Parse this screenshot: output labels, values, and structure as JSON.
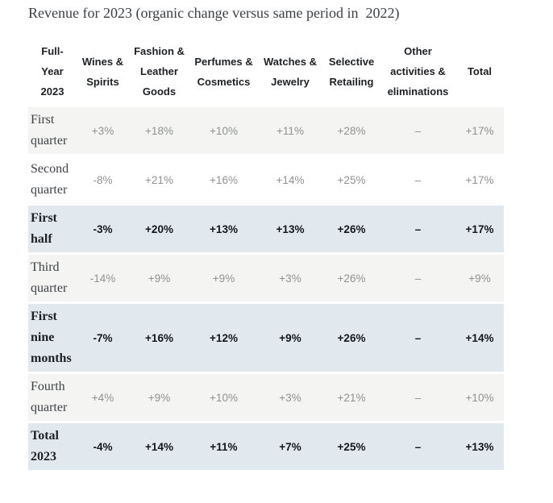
{
  "title": "Revenue for 2023 (organic change versus same period in  2022)",
  "colors": {
    "row_gray_bg": "#f4f4f2",
    "row_white_bg": "#ffffff",
    "row_highlight_blue_bg": "#e1e9ef",
    "muted_value_text": "#8f9193",
    "strong_value_text": "#141619",
    "header_text": "#1e2124",
    "title_text": "#3c4147"
  },
  "table": {
    "headers": [
      "Full-\nYear\n2023",
      "Wines &\nSpirits",
      "Fashion &\nLeather\nGoods",
      "Perfumes &\nCosmetics",
      "Watches &\nJewelry",
      "Selective\nRetailing",
      "Other\nactivities &\neliminations",
      "Total"
    ],
    "rows": [
      {
        "label": "First\nquarter",
        "style": "gray",
        "bold": false,
        "values": [
          "+3%",
          "+18%",
          "+10%",
          "+11%",
          "+28%",
          "–",
          "+17%"
        ]
      },
      {
        "label": "Second\nquarter",
        "style": "white",
        "bold": false,
        "values": [
          "-8%",
          "+21%",
          "+16%",
          "+14%",
          "+25%",
          "–",
          "+17%"
        ]
      },
      {
        "label": "First\nhalf",
        "style": "blue",
        "bold": true,
        "values": [
          "-3%",
          "+20%",
          "+13%",
          "+13%",
          "+26%",
          "–",
          "+17%"
        ]
      },
      {
        "label": "Third\nquarter",
        "style": "gray",
        "bold": false,
        "values": [
          "-14%",
          "+9%",
          "+9%",
          "+3%",
          "+26%",
          "–",
          "+9%"
        ]
      },
      {
        "label": "First\nnine\nmonths",
        "style": "blue",
        "bold": true,
        "values": [
          "-7%",
          "+16%",
          "+12%",
          "+9%",
          "+26%",
          "–",
          "+14%"
        ]
      },
      {
        "label": "Fourth\nquarter",
        "style": "gray",
        "bold": false,
        "values": [
          "+4%",
          "+9%",
          "+10%",
          "+3%",
          "+21%",
          "–",
          "+10%"
        ]
      },
      {
        "label": "Total\n2023",
        "style": "blue",
        "bold": true,
        "values": [
          "-4%",
          "+14%",
          "+11%",
          "+7%",
          "+25%",
          "–",
          "+13%"
        ]
      }
    ]
  }
}
